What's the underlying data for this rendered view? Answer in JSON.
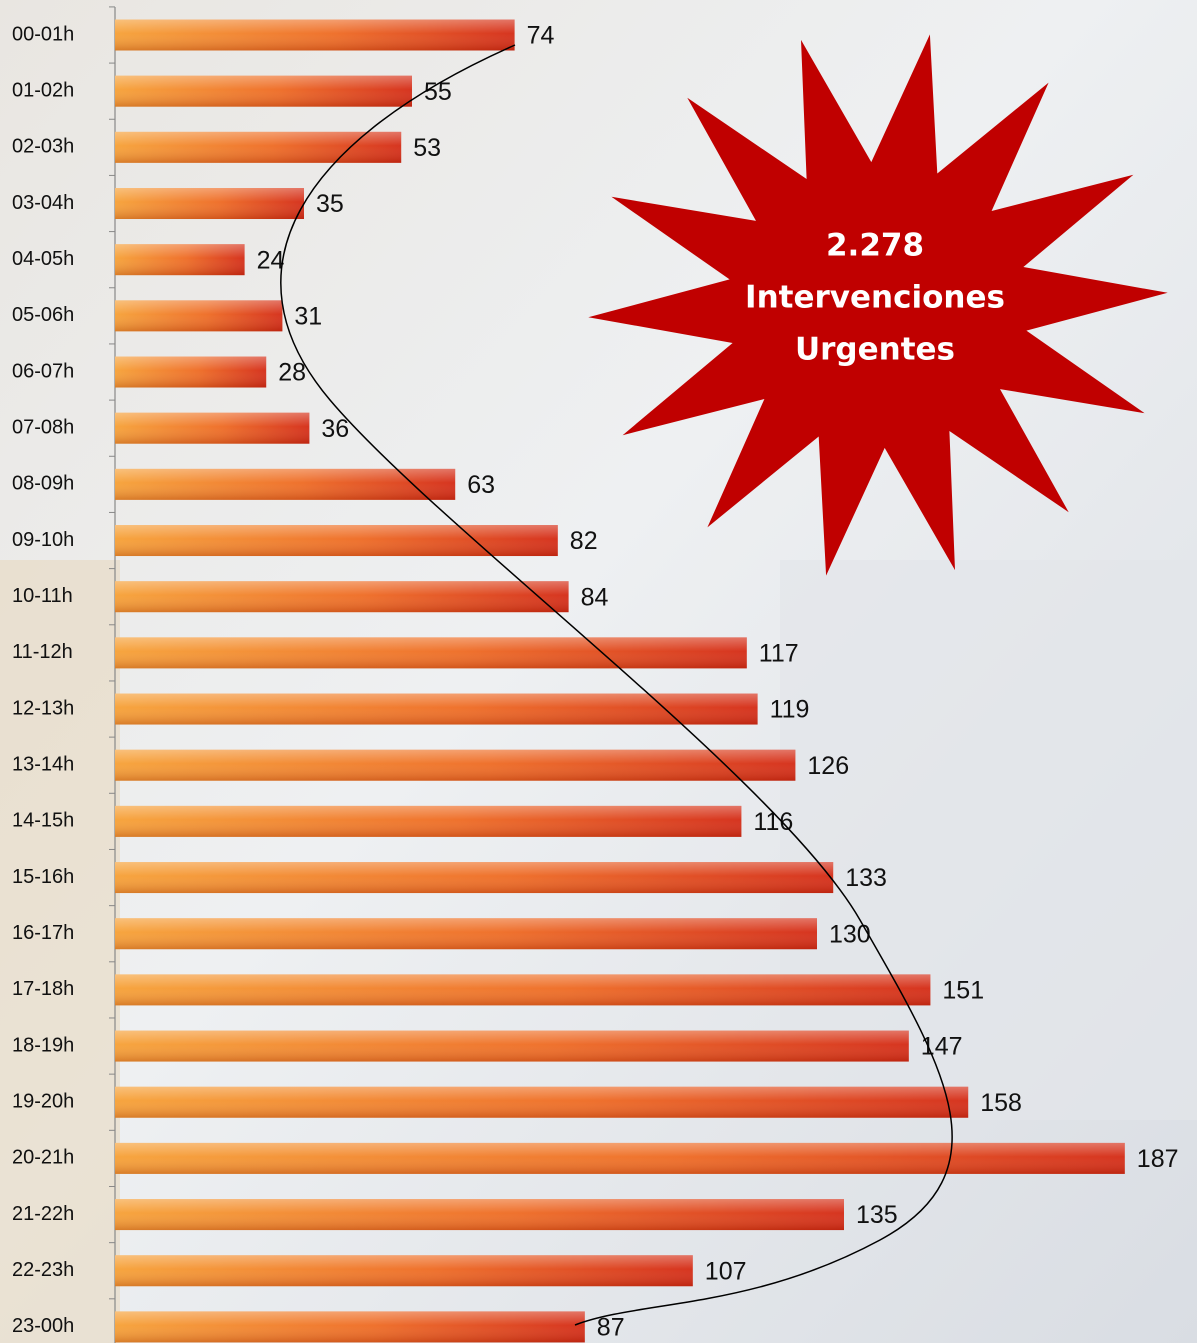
{
  "chart_data": {
    "type": "barh",
    "categories": [
      "00-01h",
      "01-02h",
      "02-03h",
      "03-04h",
      "04-05h",
      "05-06h",
      "06-07h",
      "07-08h",
      "08-09h",
      "09-10h",
      "10-11h",
      "11-12h",
      "12-13h",
      "13-14h",
      "14-15h",
      "15-16h",
      "16-17h",
      "17-18h",
      "18-19h",
      "19-20h",
      "20-21h",
      "21-22h",
      "22-23h",
      "23-00h"
    ],
    "values": [
      74,
      55,
      53,
      35,
      24,
      31,
      28,
      36,
      63,
      82,
      84,
      117,
      119,
      126,
      116,
      133,
      130,
      151,
      147,
      158,
      187,
      135,
      107,
      87
    ],
    "color": "#e8471c",
    "xlim": [
      0,
      200
    ],
    "annotation": [
      "2.278",
      "Intervenciones",
      "Urgentes"
    ]
  }
}
